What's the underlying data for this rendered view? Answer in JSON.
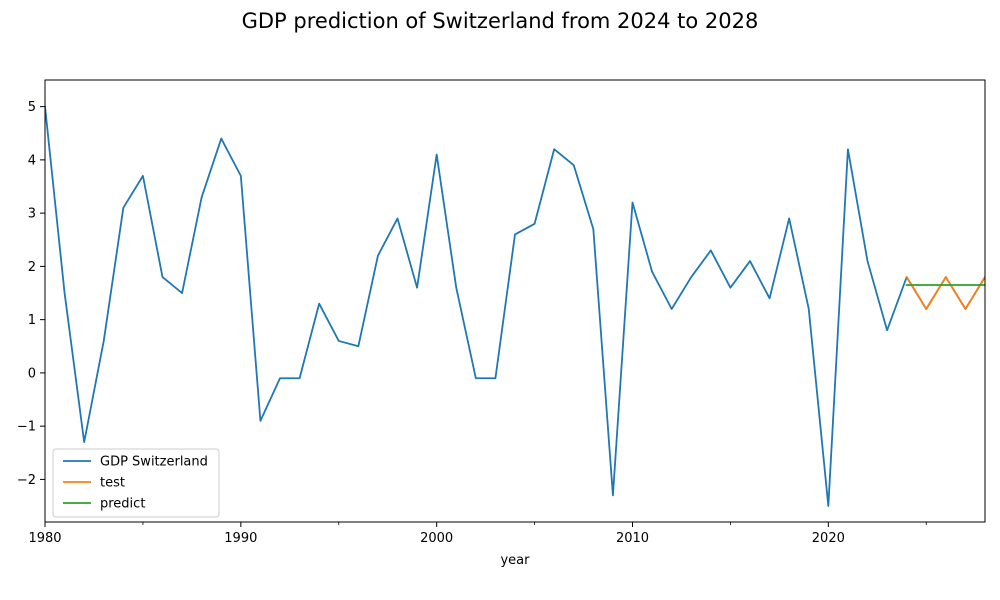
{
  "chart_data": {
    "type": "line",
    "title": "GDP prediction of Switzerland from 2024 to 2028",
    "xlabel": "year",
    "ylabel": "",
    "xlim": [
      1980,
      2028
    ],
    "ylim": [
      -2.8,
      5.5
    ],
    "x_ticks": [
      1980,
      1990,
      2000,
      2010,
      2020
    ],
    "x_minor_ticks": [
      1985,
      1995,
      2005,
      2015,
      2025
    ],
    "y_ticks": [
      -2,
      -1,
      0,
      1,
      2,
      3,
      4,
      5
    ],
    "y_tick_labels": [
      "−2",
      "−1",
      "0",
      "1",
      "2",
      "3",
      "4",
      "5"
    ],
    "grid": false,
    "legend_position": "lower-left",
    "series": [
      {
        "name": "GDP Switzerland",
        "color": "#1f77b4",
        "x": [
          1980,
          1981,
          1982,
          1983,
          1984,
          1985,
          1986,
          1987,
          1988,
          1989,
          1990,
          1991,
          1992,
          1993,
          1994,
          1995,
          1996,
          1997,
          1998,
          1999,
          2000,
          2001,
          2002,
          2003,
          2004,
          2005,
          2006,
          2007,
          2008,
          2009,
          2010,
          2011,
          2012,
          2013,
          2014,
          2015,
          2016,
          2017,
          2018,
          2019,
          2020,
          2021,
          2022,
          2023,
          2024,
          2025,
          2026,
          2027,
          2028
        ],
        "values": [
          5.0,
          1.5,
          -1.3,
          0.6,
          3.1,
          3.7,
          1.8,
          1.5,
          3.3,
          4.4,
          3.7,
          -0.9,
          -0.1,
          -0.1,
          1.3,
          0.6,
          0.5,
          2.2,
          2.9,
          1.6,
          4.1,
          1.6,
          -0.1,
          -0.1,
          2.6,
          2.8,
          4.2,
          3.9,
          2.7,
          -2.3,
          3.2,
          1.9,
          1.2,
          1.8,
          2.3,
          1.6,
          2.1,
          1.4,
          2.9,
          1.2,
          -2.5,
          4.2,
          2.1,
          0.8,
          1.8,
          1.2,
          1.8,
          1.2,
          1.8
        ]
      },
      {
        "name": "test",
        "color": "#ff7f0e",
        "x": [
          2024,
          2025,
          2026,
          2027,
          2028
        ],
        "values": [
          1.8,
          1.2,
          1.8,
          1.2,
          1.8
        ]
      },
      {
        "name": "predict",
        "color": "#2ca02c",
        "x": [
          2024,
          2025,
          2026,
          2027,
          2028
        ],
        "values": [
          1.65,
          1.65,
          1.65,
          1.65,
          1.65
        ]
      }
    ]
  }
}
